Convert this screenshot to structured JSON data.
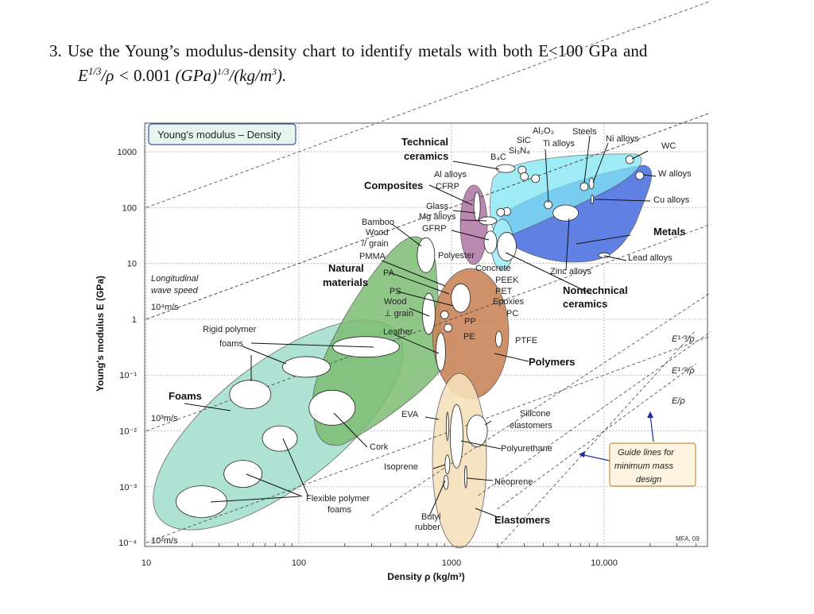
{
  "question": {
    "line1": "3.  Use the Young’s modulus-density chart to identify metals with both E<100 GPa and",
    "line2_lhs": "E",
    "line2_sup": "1/3",
    "line2_mid": "/ρ < ",
    "line2_value": "0.001",
    "line2_unit": " (GPa)",
    "line2_unit_exp": "1/3",
    "line2_unit_rest": "/(kg/m",
    "line2_unit_rest_exp": "3",
    "line2_end": ")."
  },
  "chart_data": {
    "type": "scatter",
    "title": "Young's modulus – Density",
    "xlabel": "Density ρ (kg/m³)",
    "ylabel": "Young's modulus E (GPa)",
    "x_scale": "log",
    "y_scale": "log",
    "xlim": [
      10,
      50000
    ],
    "ylim": [
      0.0001,
      3000
    ],
    "grid": true,
    "x_ticks": [
      "10",
      "100",
      "1000",
      "10,000"
    ],
    "x_tick_values": [
      10,
      100,
      1000,
      10000
    ],
    "y_ticks": [
      "1000",
      "100",
      "10",
      "1",
      "10⁻¹",
      "10⁻²",
      "10⁻³",
      "10⁻⁴"
    ],
    "y_tick_values": [
      1000,
      100,
      10,
      1,
      0.1,
      0.01,
      0.001,
      0.0001
    ],
    "credit": "MFA, 09",
    "families": [
      {
        "name": "Foams",
        "density_range": [
          15,
          900
        ],
        "modulus_range": [
          0.0003,
          1
        ],
        "color": "#a6dfcf"
      },
      {
        "name": "Natural materials",
        "density_range": [
          110,
          950
        ],
        "modulus_range": [
          0.005,
          30
        ],
        "color": "#7dbd74"
      },
      {
        "name": "Polymers",
        "density_range": [
          750,
          2300
        ],
        "modulus_range": [
          0.04,
          7
        ],
        "color": "#c98659"
      },
      {
        "name": "Elastomers",
        "density_range": [
          760,
          1700
        ],
        "modulus_range": [
          0.0001,
          0.1
        ],
        "color": "#f6e0bb"
      },
      {
        "name": "Composites",
        "density_range": [
          1150,
          1700
        ],
        "modulus_range": [
          10,
          230
        ],
        "color": "#b27da9"
      },
      {
        "name": "Technical ceramics",
        "density_range": [
          2200,
          16000
        ],
        "modulus_range": [
          8,
          900
        ],
        "color": "#7fe6f4"
      },
      {
        "name": "Metals",
        "density_range": [
          1700,
          45000
        ],
        "modulus_range": [
          12,
          600
        ],
        "color": "#5173e0"
      },
      {
        "name": "Nontechnical ceramics",
        "density_range": [
          2000,
          2800
        ],
        "modulus_range": [
          7,
          45
        ],
        "color": "#a4eef8"
      }
    ],
    "materials": [
      {
        "name": "WC",
        "density": 14700,
        "E": 720
      },
      {
        "name": "W alloys",
        "density": 17100,
        "E": 374
      },
      {
        "name": "Cu alloys",
        "density": 8350,
        "E": 140
      },
      {
        "name": "Ni alloys",
        "density": 8260,
        "E": 270
      },
      {
        "name": "Steels",
        "density": 7400,
        "E": 237
      },
      {
        "name": "Ti alloys",
        "density": 4300,
        "E": 112
      },
      {
        "name": "Zinc alloys",
        "density": 5600,
        "E": 80
      },
      {
        "name": "Lead alloys",
        "density": 10000,
        "E": 14
      },
      {
        "name": "Al2O3",
        "density": 3550,
        "E": 330
      },
      {
        "name": "SiC",
        "density": 2900,
        "E": 470
      },
      {
        "name": "Si3N4",
        "density": 3000,
        "E": 360
      },
      {
        "name": "B4C",
        "density": 2260,
        "E": 500
      },
      {
        "name": "Al alloys",
        "density": 2300,
        "E": 85
      },
      {
        "name": "Glass",
        "density": 2100,
        "E": 82
      },
      {
        "name": "Mg alloys",
        "density": 1730,
        "E": 58
      },
      {
        "name": "CFRP",
        "density": 1470,
        "E": 105
      },
      {
        "name": "GFRP",
        "density": 1800,
        "E": 24
      },
      {
        "name": "Concrete",
        "density": 2300,
        "E": 20
      },
      {
        "name": "Bamboo / Wood // grain",
        "density": 680,
        "E": 14
      },
      {
        "name": "Wood ⊥ grain",
        "density": 710,
        "E": 1.25
      },
      {
        "name": "Leather",
        "density": 850,
        "E": 0.26
      },
      {
        "name": "PMMA/PA/PS/PEEK/PET/Epoxies/PC",
        "density": 1150,
        "E": 2.4
      },
      {
        "name": "PP",
        "density": 900,
        "E": 1.2
      },
      {
        "name": "PE",
        "density": 950,
        "E": 0.7
      },
      {
        "name": "PTFE",
        "density": 2040,
        "E": 0.44
      },
      {
        "name": "Silicone elastomers",
        "density": 1470,
        "E": 0.01
      },
      {
        "name": "Polyurethane",
        "density": 1080,
        "E": 0.008
      },
      {
        "name": "EVA",
        "density": 940,
        "E": 0.012
      },
      {
        "name": "Neoprene",
        "density": 1240,
        "E": 0.0015
      },
      {
        "name": "Isoprene",
        "density": 940,
        "E": 0.0025
      },
      {
        "name": "Butyl rubber",
        "density": 920,
        "E": 0.0012
      },
      {
        "name": "Rigid polymer foam (high)",
        "density": 275,
        "E": 0.32
      },
      {
        "name": "Rigid polymer foam (mid)",
        "density": 112,
        "E": 0.14
      },
      {
        "name": "Rigid polymer foam (low)",
        "density": 48,
        "E": 0.045
      },
      {
        "name": "Cork",
        "density": 165,
        "E": 0.026
      },
      {
        "name": "Flexible polymer foam (high)",
        "density": 75,
        "E": 0.0073
      },
      {
        "name": "Flexible polymer foam (mid)",
        "density": 43,
        "E": 0.0017
      },
      {
        "name": "Flexible polymer foam (low)",
        "density": 23,
        "E": 0.00054
      }
    ],
    "wave_speed_lines_m_per_s": [
      100,
      1000,
      10000
    ],
    "guide_lines": [
      "E/ρ",
      "E^1/2/ρ",
      "E^1/3/ρ"
    ],
    "guide_point": {
      "density": 10000,
      "E": 0.01
    }
  },
  "labels": {
    "bold": [
      "Technical",
      "ceramics",
      "Composites",
      "Natural",
      "materials",
      "Foams",
      "Metals",
      "Nontechnical",
      "ceramics",
      "Polymers",
      "Elastomers"
    ],
    "small": [
      "Al₂O₃",
      "SiC",
      "Si₃N₄",
      "B₄C",
      "Steels",
      "Ti alloys",
      "Ni alloys",
      "WC",
      "W alloys",
      "Cu alloys",
      "Lead alloys",
      "Zinc alloys",
      "Al alloys",
      "CFRP",
      "Glass",
      "Mg alloys",
      "GFRP",
      "Bamboo",
      "Wood",
      "// grain",
      "PMMA",
      "Polyester",
      "Concrete",
      "PA",
      "PS",
      "Wood",
      "⊥ grain",
      "PEEK",
      "PET",
      "Epoxies",
      "PC",
      "PP",
      "Leather",
      "PE",
      "PTFE",
      "Rigid polymer",
      "foams",
      "EVA",
      "Silicone",
      "elastomers",
      "Cork",
      "Polyurethane",
      "Isoprene",
      "Neoprene",
      "Flexible polymer",
      "foams",
      "Butyl",
      "rubber"
    ],
    "italic": [
      "Longitudinal",
      "wave speed",
      "Guide lines for",
      "minimum mass",
      "design"
    ],
    "speeds": [
      "10⁴m/s",
      "10³m/s",
      "10²m/s"
    ],
    "guides": [
      "E¹ᐟ³/ρ",
      "E¹ᐟ²/ρ",
      "E/ρ"
    ]
  },
  "colors": {
    "title_box_fill": "#e6f5f0",
    "title_box_border": "#3a4fa0",
    "guide_box_fill": "#fdf3e1",
    "guide_box_border": "#c89040",
    "arrow": "#1a2aa0"
  }
}
